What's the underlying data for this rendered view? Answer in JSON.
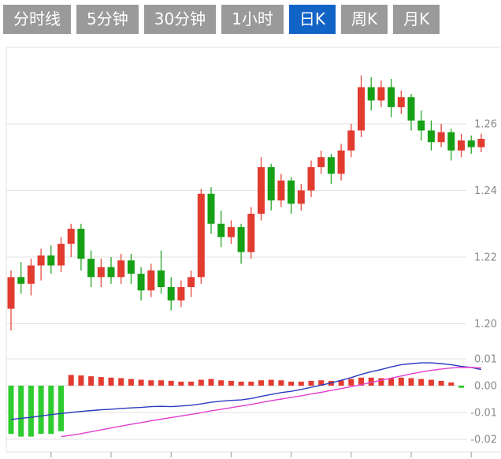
{
  "colors": {
    "up": "#e23b30",
    "down": "#16a016",
    "hist_down": "#2ecc2e",
    "dif_line": "#2b3bbf",
    "dea_line": "#e33fd0",
    "grid": "#e2e2e2",
    "axis_text": "#8a8a8a",
    "tick_mark": "#9a9a9a",
    "tab_bg": "#9a9a9a",
    "tab_active_bg": "#1263c6",
    "tab_text": "#ffffff"
  },
  "tabbar": {
    "tabs": [
      {
        "id": "timeline",
        "label": "分时线",
        "active": false
      },
      {
        "id": "5min",
        "label": "5分钟",
        "active": false
      },
      {
        "id": "30min",
        "label": "30分钟",
        "active": false
      },
      {
        "id": "1hour",
        "label": "1小时",
        "active": false
      },
      {
        "id": "daily-k",
        "label": "日K",
        "active": true
      },
      {
        "id": "weekly-k",
        "label": "周K",
        "active": false
      },
      {
        "id": "monthly-k",
        "label": "月K",
        "active": false
      }
    ]
  },
  "chart_data": {
    "type": "candlestick+macd",
    "title": "",
    "legend": [],
    "grid": true,
    "price_axis": {
      "side": "right",
      "range": [
        1.192,
        1.283
      ],
      "ticks": [
        {
          "v": 1.26,
          "label": "1.26"
        },
        {
          "v": 1.24,
          "label": "1.24"
        },
        {
          "v": 1.22,
          "label": "1.22"
        },
        {
          "v": 1.2,
          "label": "1.20"
        }
      ]
    },
    "macd_axis": {
      "side": "right",
      "range": [
        -0.0255,
        0.0115
      ],
      "ticks": [
        {
          "v": 0.01,
          "label": "0.01"
        },
        {
          "v": 0.0,
          "label": "0.00"
        },
        {
          "v": -0.01,
          "label": "-0.01"
        },
        {
          "v": -0.02,
          "label": "-0.02"
        }
      ]
    },
    "x_ticks_candle_indices": [
      4,
      10,
      16,
      22,
      28,
      34,
      40,
      46
    ],
    "candles": [
      [
        1.2045,
        1.216,
        1.198,
        1.214
      ],
      [
        1.214,
        1.2185,
        1.209,
        1.212
      ],
      [
        1.212,
        1.2195,
        1.2085,
        1.2175
      ],
      [
        1.2175,
        1.2225,
        1.213,
        1.2205
      ],
      [
        1.2205,
        1.2235,
        1.215,
        1.2175
      ],
      [
        1.2175,
        1.226,
        1.2155,
        1.224
      ],
      [
        1.224,
        1.23,
        1.22,
        1.2285
      ],
      [
        1.2285,
        1.23,
        1.216,
        1.2195
      ],
      [
        1.2195,
        1.222,
        1.211,
        1.214
      ],
      [
        1.214,
        1.2195,
        1.211,
        1.217
      ],
      [
        1.217,
        1.22,
        1.212,
        1.214
      ],
      [
        1.214,
        1.221,
        1.212,
        1.219
      ],
      [
        1.219,
        1.221,
        1.212,
        1.215
      ],
      [
        1.215,
        1.217,
        1.207,
        1.21
      ],
      [
        1.21,
        1.218,
        1.208,
        1.216
      ],
      [
        1.216,
        1.222,
        1.209,
        1.211
      ],
      [
        1.211,
        1.214,
        1.204,
        1.207
      ],
      [
        1.207,
        1.213,
        1.205,
        1.211
      ],
      [
        1.211,
        1.216,
        1.208,
        1.214
      ],
      [
        1.214,
        1.2405,
        1.212,
        1.239
      ],
      [
        1.239,
        1.241,
        1.227,
        1.23
      ],
      [
        1.23,
        1.234,
        1.223,
        1.226
      ],
      [
        1.226,
        1.231,
        1.224,
        1.229
      ],
      [
        1.229,
        1.23,
        1.218,
        1.2215
      ],
      [
        1.2215,
        1.235,
        1.2195,
        1.233
      ],
      [
        1.233,
        1.25,
        1.231,
        1.247
      ],
      [
        1.247,
        1.248,
        1.234,
        1.237
      ],
      [
        1.237,
        1.245,
        1.235,
        1.243
      ],
      [
        1.243,
        1.244,
        1.233,
        1.236
      ],
      [
        1.236,
        1.242,
        1.234,
        1.24
      ],
      [
        1.24,
        1.249,
        1.238,
        1.247
      ],
      [
        1.247,
        1.252,
        1.245,
        1.25
      ],
      [
        1.25,
        1.251,
        1.242,
        1.245
      ],
      [
        1.245,
        1.254,
        1.243,
        1.252
      ],
      [
        1.252,
        1.26,
        1.25,
        1.258
      ],
      [
        1.258,
        1.2745,
        1.256,
        1.271
      ],
      [
        1.271,
        1.274,
        1.264,
        1.267
      ],
      [
        1.267,
        1.273,
        1.265,
        1.271
      ],
      [
        1.271,
        1.2735,
        1.262,
        1.265
      ],
      [
        1.265,
        1.27,
        1.263,
        1.268
      ],
      [
        1.268,
        1.269,
        1.258,
        1.261
      ],
      [
        1.261,
        1.264,
        1.255,
        1.258
      ],
      [
        1.258,
        1.261,
        1.252,
        1.2545
      ],
      [
        1.2545,
        1.26,
        1.253,
        1.2575
      ],
      [
        1.2575,
        1.2585,
        1.249,
        1.252
      ],
      [
        1.252,
        1.257,
        1.25,
        1.255
      ],
      [
        1.255,
        1.2565,
        1.251,
        1.253
      ],
      [
        1.253,
        1.257,
        1.2515,
        1.2555
      ]
    ],
    "macd": {
      "histogram": [
        -0.018,
        -0.019,
        -0.019,
        -0.018,
        -0.018,
        -0.017,
        0.004,
        0.0038,
        0.0035,
        0.0032,
        0.003,
        0.0028,
        0.0025,
        0.0022,
        0.002,
        0.002,
        0.0018,
        0.0015,
        0.0015,
        0.0022,
        0.0025,
        0.002,
        0.0018,
        0.0015,
        0.0015,
        0.002,
        0.0022,
        0.002,
        0.0015,
        0.0015,
        0.0018,
        0.002,
        0.0018,
        0.002,
        0.0025,
        0.003,
        0.003,
        0.0028,
        0.0028,
        0.003,
        0.0028,
        0.0025,
        0.0022,
        0.0018,
        0.0012,
        -0.0008,
        -0.001,
        -0.0012
      ],
      "dif": [
        -0.0126,
        -0.0122,
        -0.0118,
        -0.0113,
        -0.0108,
        -0.0104,
        -0.01,
        -0.0096,
        -0.0093,
        -0.009,
        -0.0088,
        -0.0085,
        -0.0083,
        -0.0081,
        -0.0078,
        -0.0077,
        -0.0078,
        -0.0076,
        -0.0073,
        -0.0068,
        -0.0062,
        -0.0058,
        -0.0055,
        -0.0053,
        -0.0048,
        -0.004,
        -0.0033,
        -0.0026,
        -0.0021,
        -0.0014,
        -0.0006,
        0.0002,
        0.001,
        0.002,
        0.003,
        0.0042,
        0.0052,
        0.006,
        0.007,
        0.0078,
        0.0082,
        0.0085,
        0.0085,
        0.0082,
        0.0078,
        0.0072,
        0.0068,
        0.006
      ],
      "dea": [
        null,
        null,
        null,
        null,
        null,
        -0.019,
        -0.0185,
        -0.0179,
        -0.0172,
        -0.0165,
        -0.0158,
        -0.0151,
        -0.0144,
        -0.0138,
        -0.0131,
        -0.0125,
        -0.0119,
        -0.0113,
        -0.0107,
        -0.0101,
        -0.0094,
        -0.0088,
        -0.0082,
        -0.0076,
        -0.007,
        -0.0063,
        -0.0056,
        -0.005,
        -0.0044,
        -0.0038,
        -0.0031,
        -0.0025,
        -0.0018,
        -0.0011,
        -0.0004,
        0.0004,
        0.0012,
        0.002,
        0.0028,
        0.0036,
        0.0044,
        0.0051,
        0.0057,
        0.0062,
        0.0066,
        0.0068,
        0.0068,
        0.0066
      ]
    }
  }
}
